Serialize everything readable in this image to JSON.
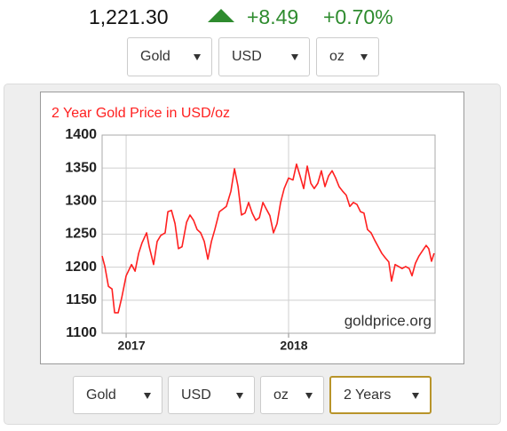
{
  "price": {
    "last": "1,221.30",
    "change": "+8.49",
    "change_pct": "+0.70%"
  },
  "selectors_top": [
    "Gold",
    "USD",
    "oz"
  ],
  "chart_data": {
    "type": "line",
    "title": "2 Year Gold Price in USD/oz",
    "annotation": "goldprice.org",
    "color": "#ff2020",
    "grid": true,
    "xlim": [
      2016.852,
      2018.902
    ],
    "xticks": [
      2017,
      2018
    ],
    "ylim": [
      1100,
      1400
    ],
    "yticks": [
      1100,
      1150,
      1200,
      1250,
      1300,
      1350,
      1400
    ],
    "x": [
      2016.852,
      2016.869,
      2016.891,
      2016.913,
      2016.929,
      2016.951,
      2016.973,
      2017.0,
      2017.033,
      2017.055,
      2017.077,
      2017.098,
      2017.126,
      2017.142,
      2017.169,
      2017.191,
      2017.213,
      2017.24,
      2017.257,
      2017.279,
      2017.301,
      2017.322,
      2017.344,
      2017.372,
      2017.393,
      2017.415,
      2017.437,
      2017.459,
      2017.481,
      2017.503,
      2017.525,
      2017.546,
      2017.574,
      2017.596,
      2017.617,
      2017.645,
      2017.667,
      2017.689,
      2017.71,
      2017.732,
      2017.754,
      2017.776,
      2017.798,
      2017.82,
      2017.842,
      2017.863,
      2017.885,
      2017.907,
      2017.929,
      2017.951,
      2017.973,
      2018.0,
      2018.027,
      2018.049,
      2018.071,
      2018.093,
      2018.115,
      2018.137,
      2018.158,
      2018.18,
      2018.202,
      2018.224,
      2018.246,
      2018.268,
      2018.29,
      2018.311,
      2018.333,
      2018.355,
      2018.377,
      2018.399,
      2018.421,
      2018.443,
      2018.464,
      2018.486,
      2018.508,
      2018.53,
      2018.552,
      2018.574,
      2018.596,
      2018.617,
      2018.634,
      2018.656,
      2018.678,
      2018.699,
      2018.721,
      2018.743,
      2018.76,
      2018.781,
      2018.803,
      2018.825,
      2018.847,
      2018.863,
      2018.88,
      2018.896
    ],
    "values": [
      1217,
      1201,
      1171,
      1167,
      1131,
      1131,
      1154,
      1187,
      1204,
      1194,
      1221,
      1237,
      1252,
      1231,
      1204,
      1239,
      1248,
      1252,
      1284,
      1286,
      1266,
      1228,
      1231,
      1268,
      1279,
      1271,
      1257,
      1252,
      1239,
      1212,
      1239,
      1257,
      1284,
      1288,
      1292,
      1315,
      1349,
      1322,
      1279,
      1282,
      1298,
      1282,
      1271,
      1275,
      1298,
      1288,
      1278,
      1252,
      1266,
      1298,
      1319,
      1335,
      1332,
      1356,
      1338,
      1319,
      1353,
      1327,
      1319,
      1327,
      1346,
      1322,
      1338,
      1346,
      1335,
      1322,
      1315,
      1309,
      1292,
      1298,
      1295,
      1284,
      1282,
      1257,
      1252,
      1241,
      1231,
      1221,
      1214,
      1208,
      1179,
      1204,
      1201,
      1198,
      1201,
      1198,
      1187,
      1206,
      1217,
      1225,
      1233,
      1228,
      1209,
      1221
    ]
  },
  "selectors_bottom": [
    "Gold",
    "USD",
    "oz",
    "2 Years"
  ]
}
